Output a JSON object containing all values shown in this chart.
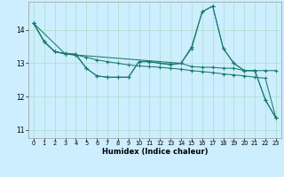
{
  "title": "",
  "xlabel": "Humidex (Indice chaleur)",
  "background_color": "#cceeff",
  "grid_color": "#aaddcc",
  "line_color": "#1a7a6a",
  "xlim": [
    -0.5,
    23.5
  ],
  "ylim": [
    10.75,
    14.85
  ],
  "yticks": [
    11,
    12,
    13,
    14
  ],
  "xticks": [
    0,
    1,
    2,
    3,
    4,
    5,
    6,
    7,
    8,
    9,
    10,
    11,
    12,
    13,
    14,
    15,
    16,
    17,
    18,
    19,
    20,
    21,
    22,
    23
  ],
  "series": [
    {
      "x": [
        0,
        1,
        2,
        3,
        4,
        5,
        6,
        7,
        8,
        9,
        10,
        11,
        12,
        13,
        14,
        15,
        16,
        17,
        18,
        19,
        20,
        21,
        22,
        23
      ],
      "y": [
        14.2,
        13.65,
        13.35,
        13.3,
        13.28,
        12.85,
        12.62,
        12.58,
        12.58,
        12.58,
        13.05,
        13.05,
        13.0,
        12.98,
        13.0,
        13.5,
        14.55,
        14.72,
        13.45,
        13.0,
        12.78,
        12.78,
        11.9,
        11.35
      ]
    },
    {
      "x": [
        0,
        1,
        2,
        3,
        4,
        5,
        6,
        7,
        8,
        9,
        10,
        11,
        12,
        13,
        14,
        15,
        16,
        17,
        18,
        19,
        20,
        21,
        22,
        23
      ],
      "y": [
        14.2,
        13.65,
        13.35,
        13.28,
        13.25,
        13.18,
        13.1,
        13.05,
        13.0,
        12.95,
        12.92,
        12.9,
        12.88,
        12.85,
        12.82,
        12.78,
        12.75,
        12.72,
        12.68,
        12.65,
        12.62,
        12.58,
        12.55,
        11.35
      ]
    },
    {
      "x": [
        0,
        3,
        4,
        5,
        6,
        7,
        8,
        9,
        10,
        11,
        12,
        13,
        14,
        15,
        16,
        17,
        18,
        19,
        20,
        21,
        22,
        23
      ],
      "y": [
        14.2,
        13.28,
        13.25,
        12.85,
        12.62,
        12.58,
        12.58,
        12.58,
        13.05,
        13.05,
        13.0,
        12.95,
        13.0,
        12.9,
        12.88,
        12.88,
        12.85,
        12.85,
        12.78,
        12.78,
        12.78,
        12.78
      ]
    },
    {
      "x": [
        0,
        1,
        2,
        3,
        4,
        14,
        15,
        16,
        17,
        18,
        19,
        20,
        21,
        22,
        23
      ],
      "y": [
        14.2,
        13.65,
        13.35,
        13.28,
        13.25,
        13.0,
        13.45,
        14.55,
        14.72,
        13.45,
        13.0,
        12.78,
        12.78,
        11.9,
        11.35
      ]
    }
  ]
}
